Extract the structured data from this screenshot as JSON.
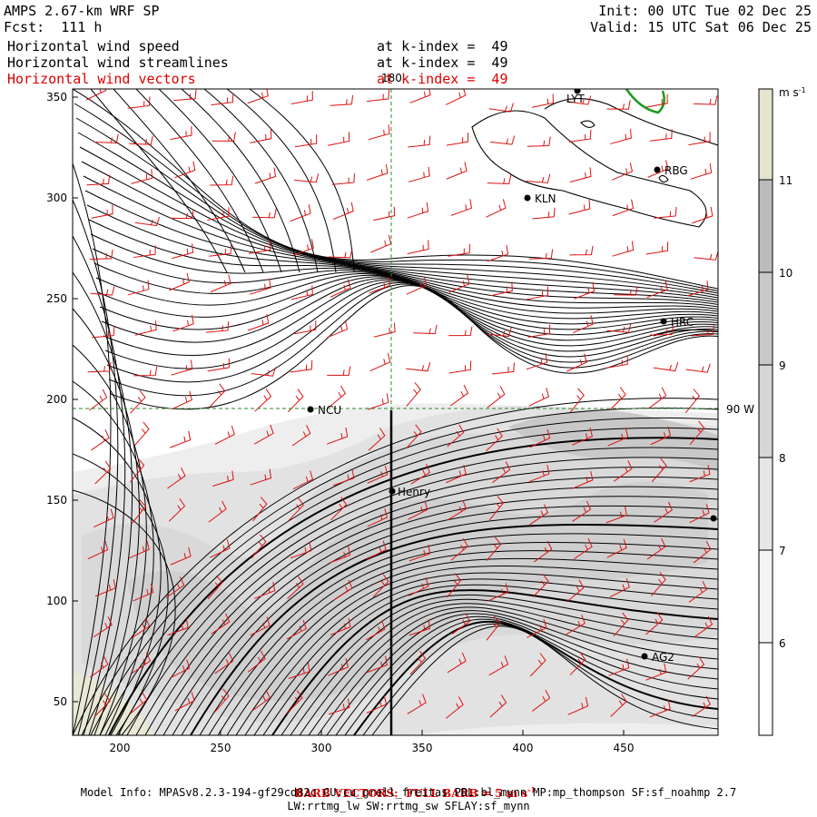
{
  "header": {
    "model_title": "AMPS 2.67-km WRF SP",
    "forecast": "Fcst:  111 h",
    "init": "Init: 00 UTC Tue 02 Dec 25",
    "valid": "Valid: 15 UTC Sat 06 Dec 25",
    "fields": [
      {
        "name": "Horizontal wind speed",
        "level": "at k-index =  49"
      },
      {
        "name": "Horizontal wind streamlines",
        "level": "at k-index =  49"
      },
      {
        "name": "Horizontal wind vectors",
        "level": "at k-index =  49"
      }
    ]
  },
  "map": {
    "x_ticks": [
      "200",
      "250",
      "300",
      "350",
      "400",
      "450"
    ],
    "y_ticks": [
      "350",
      "300",
      "250",
      "200",
      "150",
      "100",
      "50"
    ],
    "meridian_label": "180",
    "parallel_label": "90 W",
    "stations": [
      {
        "code": "LYT",
        "display": "LYT"
      },
      {
        "code": "KLN",
        "display": "KLN"
      },
      {
        "code": "RBG",
        "display": "RBG"
      },
      {
        "code": "HRC",
        "display": "HRC"
      },
      {
        "code": "NCU",
        "display": "NCU"
      },
      {
        "code": "Henry",
        "display": "Henry"
      },
      {
        "code": "AG2",
        "display": "AG2"
      },
      {
        "code": "EDGE",
        "display": ""
      }
    ]
  },
  "colorbar": {
    "units": "m s",
    "units_exp": "-1",
    "levels": [
      "11",
      "10",
      "9",
      "8",
      "7",
      "6"
    ],
    "colors": [
      "#ffffff",
      "#f4f4f4",
      "#e6e6e6",
      "#d6d6d6",
      "#c8c8c8",
      "#bbbbbb",
      "#e4e4cf"
    ]
  },
  "footer": {
    "barb_text": "BARB VECTORS:  FULL BARB = 5 m s",
    "barb_exp": "-1",
    "model_info": "Model Info: MPASv8.2.3-194-gf29cd82c CU:cu_grell_freitas PBL:bl_mynn MP:mp_thompson SF:sf_noahmp 2.7",
    "model_info_2": "LW:rrtmg_lw SW:rrtmg_sw SFLAY:sf_mynn"
  }
}
